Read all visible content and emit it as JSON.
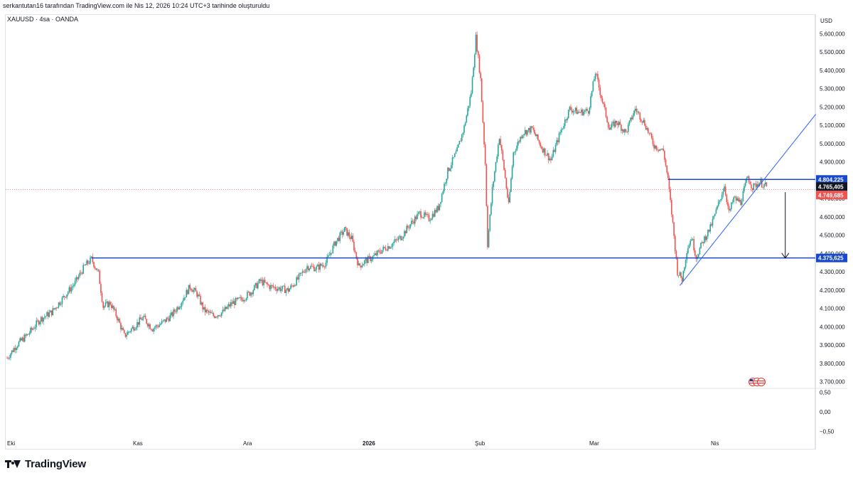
{
  "header": {
    "attribution": "serkantutan16 tarafından TradingView.com ile Nis 12, 2026 10:24 UTC+3 tarihinde oluşturuldu"
  },
  "symbol": {
    "label": "XAUUSD · 4sa · OANDA"
  },
  "axis": {
    "currency": "USD"
  },
  "footer": {
    "brand": "TradingView"
  },
  "colors": {
    "up": "#26a69a",
    "down": "#ef5350",
    "line_blue": "#1848cc",
    "trend_blue": "#2962ff",
    "price_line": "#f7525f"
  },
  "chart_data": {
    "type": "candlestick",
    "symbol": "XAUUSD",
    "timeframe": "4sa",
    "source": "OANDA",
    "ylim": [
      3660,
      5640
    ],
    "y_ticks": [
      {
        "value": 3700,
        "label": "3.700,000"
      },
      {
        "value": 3800,
        "label": "3.800,000"
      },
      {
        "value": 3900,
        "label": "3.900,000"
      },
      {
        "value": 4000,
        "label": "4.000,000"
      },
      {
        "value": 4100,
        "label": "4.100,000"
      },
      {
        "value": 4200,
        "label": "4.200,000"
      },
      {
        "value": 4300,
        "label": "4.300,000"
      },
      {
        "value": 4400,
        "label": "4.400,000"
      },
      {
        "value": 4500,
        "label": "4.500,000"
      },
      {
        "value": 4600,
        "label": "4.600,000"
      },
      {
        "value": 4700,
        "label": "4.700,000"
      },
      {
        "value": 4900,
        "label": "4.900,000"
      },
      {
        "value": 5000,
        "label": "5.000,000"
      },
      {
        "value": 5100,
        "label": "5.100,000"
      },
      {
        "value": 5200,
        "label": "5.200,000"
      },
      {
        "value": 5300,
        "label": "5.300,000"
      },
      {
        "value": 5400,
        "label": "5.400,000"
      },
      {
        "value": 5500,
        "label": "5.500,000"
      },
      {
        "value": 5600,
        "label": "5.600,000"
      }
    ],
    "x_ticks": [
      "Eki",
      "Kas",
      "Ara",
      "2026",
      "Şub",
      "Mar",
      "Nis"
    ],
    "x_tick_bold": [
      false,
      false,
      false,
      true,
      false,
      false,
      false
    ],
    "close_path": [
      {
        "i": 0,
        "v": 3830
      },
      {
        "i": 8,
        "v": 3900
      },
      {
        "i": 18,
        "v": 3960
      },
      {
        "i": 28,
        "v": 4040
      },
      {
        "i": 38,
        "v": 4080
      },
      {
        "i": 48,
        "v": 4160
      },
      {
        "i": 58,
        "v": 4240
      },
      {
        "i": 66,
        "v": 4330
      },
      {
        "i": 72,
        "v": 4370
      },
      {
        "i": 78,
        "v": 4290
      },
      {
        "i": 82,
        "v": 4110
      },
      {
        "i": 88,
        "v": 4130
      },
      {
        "i": 94,
        "v": 4050
      },
      {
        "i": 100,
        "v": 3950
      },
      {
        "i": 108,
        "v": 4000
      },
      {
        "i": 116,
        "v": 4050
      },
      {
        "i": 124,
        "v": 3990
      },
      {
        "i": 132,
        "v": 4020
      },
      {
        "i": 140,
        "v": 4060
      },
      {
        "i": 148,
        "v": 4130
      },
      {
        "i": 156,
        "v": 4220
      },
      {
        "i": 162,
        "v": 4180
      },
      {
        "i": 168,
        "v": 4090
      },
      {
        "i": 176,
        "v": 4060
      },
      {
        "i": 184,
        "v": 4080
      },
      {
        "i": 192,
        "v": 4130
      },
      {
        "i": 200,
        "v": 4150
      },
      {
        "i": 208,
        "v": 4190
      },
      {
        "i": 216,
        "v": 4250
      },
      {
        "i": 224,
        "v": 4220
      },
      {
        "i": 232,
        "v": 4210
      },
      {
        "i": 240,
        "v": 4200
      },
      {
        "i": 248,
        "v": 4260
      },
      {
        "i": 256,
        "v": 4330
      },
      {
        "i": 264,
        "v": 4320
      },
      {
        "i": 272,
        "v": 4350
      },
      {
        "i": 280,
        "v": 4460
      },
      {
        "i": 288,
        "v": 4530
      },
      {
        "i": 294,
        "v": 4480
      },
      {
        "i": 300,
        "v": 4330
      },
      {
        "i": 306,
        "v": 4360
      },
      {
        "i": 312,
        "v": 4380
      },
      {
        "i": 320,
        "v": 4420
      },
      {
        "i": 328,
        "v": 4450
      },
      {
        "i": 336,
        "v": 4490
      },
      {
        "i": 344,
        "v": 4560
      },
      {
        "i": 352,
        "v": 4620
      },
      {
        "i": 360,
        "v": 4590
      },
      {
        "i": 368,
        "v": 4650
      },
      {
        "i": 376,
        "v": 4850
      },
      {
        "i": 384,
        "v": 4960
      },
      {
        "i": 390,
        "v": 5090
      },
      {
        "i": 396,
        "v": 5280
      },
      {
        "i": 400,
        "v": 5580
      },
      {
        "i": 404,
        "v": 5350
      },
      {
        "i": 408,
        "v": 4890
      },
      {
        "i": 410,
        "v": 4450
      },
      {
        "i": 414,
        "v": 4750
      },
      {
        "i": 420,
        "v": 5040
      },
      {
        "i": 424,
        "v": 4860
      },
      {
        "i": 428,
        "v": 4660
      },
      {
        "i": 432,
        "v": 4950
      },
      {
        "i": 440,
        "v": 5060
      },
      {
        "i": 448,
        "v": 5080
      },
      {
        "i": 456,
        "v": 4980
      },
      {
        "i": 464,
        "v": 4910
      },
      {
        "i": 472,
        "v": 5060
      },
      {
        "i": 480,
        "v": 5190
      },
      {
        "i": 488,
        "v": 5170
      },
      {
        "i": 496,
        "v": 5180
      },
      {
        "i": 502,
        "v": 5390
      },
      {
        "i": 506,
        "v": 5280
      },
      {
        "i": 510,
        "v": 5180
      },
      {
        "i": 514,
        "v": 5080
      },
      {
        "i": 520,
        "v": 5120
      },
      {
        "i": 528,
        "v": 5060
      },
      {
        "i": 536,
        "v": 5190
      },
      {
        "i": 544,
        "v": 5110
      },
      {
        "i": 552,
        "v": 4990
      },
      {
        "i": 560,
        "v": 4960
      },
      {
        "i": 564,
        "v": 4800
      },
      {
        "i": 568,
        "v": 4560
      },
      {
        "i": 572,
        "v": 4300
      },
      {
        "i": 576,
        "v": 4260
      },
      {
        "i": 580,
        "v": 4420
      },
      {
        "i": 584,
        "v": 4490
      },
      {
        "i": 588,
        "v": 4380
      },
      {
        "i": 594,
        "v": 4470
      },
      {
        "i": 600,
        "v": 4540
      },
      {
        "i": 606,
        "v": 4650
      },
      {
        "i": 612,
        "v": 4770
      },
      {
        "i": 616,
        "v": 4620
      },
      {
        "i": 620,
        "v": 4700
      },
      {
        "i": 626,
        "v": 4680
      },
      {
        "i": 632,
        "v": 4820
      },
      {
        "i": 636,
        "v": 4760
      },
      {
        "i": 642,
        "v": 4790
      },
      {
        "i": 648,
        "v": 4765
      }
    ],
    "candle_count": 649,
    "support_level": {
      "value": 4375.625,
      "label": "4.375,625",
      "start_i": 72
    },
    "resistance_level": {
      "value": 4804.225,
      "label": "4.804,225",
      "start_i": 564
    },
    "last_price": {
      "value": 4765.405,
      "label": "4.765,405"
    },
    "current_price": {
      "value": 4749.685,
      "label": "4.749,685"
    },
    "trendline": {
      "from": {
        "i": 574,
        "v": 4225
      },
      "to": {
        "i": 690,
        "v": 5160
      }
    },
    "target_arrow": {
      "i": 664,
      "from_v": 4735,
      "to_v": 4375
    },
    "osc_ticks": [
      {
        "value": 0.5,
        "label": "0,50"
      },
      {
        "value": 0.0,
        "label": "0,00"
      },
      {
        "value": -0.5,
        "label": "−0,50"
      }
    ]
  }
}
